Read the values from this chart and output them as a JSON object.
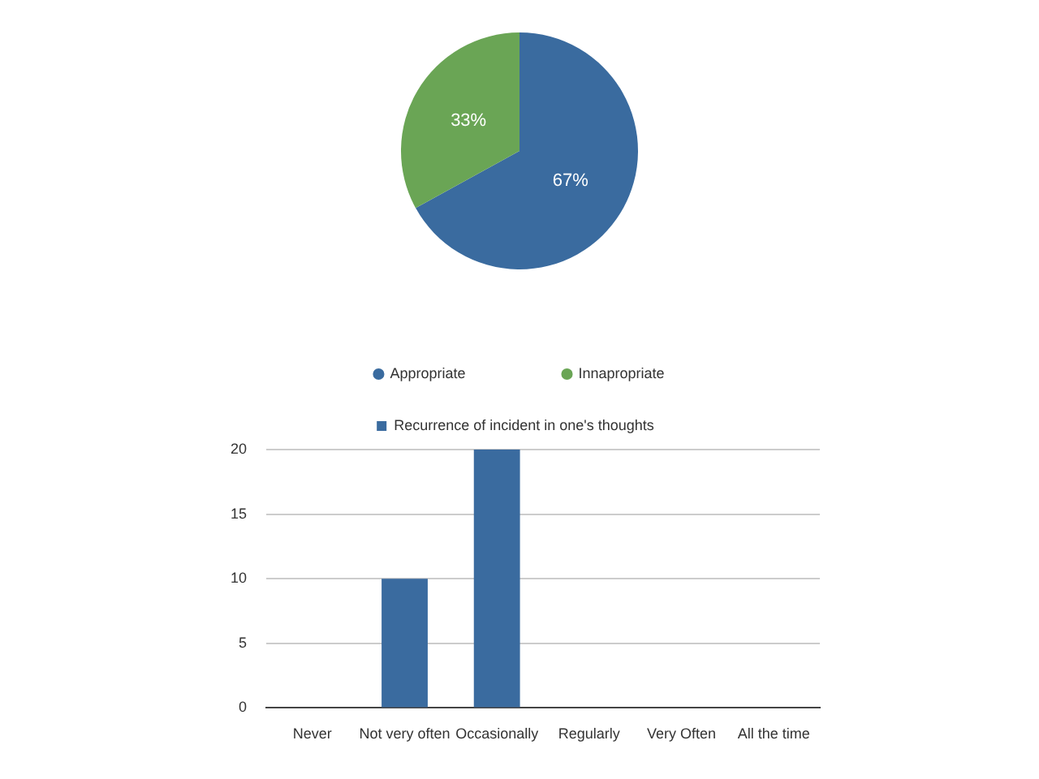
{
  "chart_data": [
    {
      "type": "pie",
      "categories": [
        "Appropriate",
        "Innapropriate"
      ],
      "values": [
        67,
        33
      ],
      "colors": [
        "#3a6b9f",
        "#6aa555"
      ],
      "value_labels": [
        "67%",
        "33%"
      ],
      "legend": "bottom"
    },
    {
      "type": "bar",
      "categories": [
        "Never",
        "Not very often",
        "Occasionally",
        "Regularly",
        "Very Often",
        "All the time"
      ],
      "series": [
        {
          "name": "Recurrence of incident in one's thoughts",
          "color": "#3a6b9f",
          "values": [
            0,
            10,
            20,
            0,
            0,
            0
          ]
        }
      ],
      "ylim": [
        0,
        20
      ],
      "yticks": [
        0,
        5,
        10,
        15,
        20
      ],
      "grid": "y",
      "legend": "top"
    }
  ]
}
